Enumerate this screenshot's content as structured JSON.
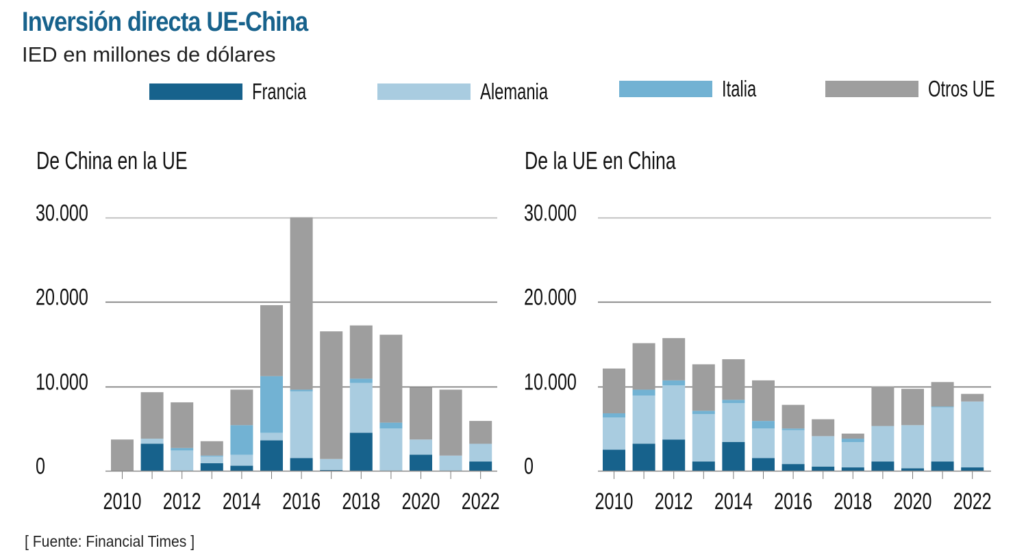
{
  "header": {
    "title": "Inversión directa UE-China",
    "subtitle": "IED en millones de dólares"
  },
  "legend": [
    {
      "name": "Francia",
      "color": "#17628c"
    },
    {
      "name": "Alemania",
      "color": "#a9cce0"
    },
    {
      "name": "Italia",
      "color": "#72b2d3"
    },
    {
      "name": "Otros UE",
      "color": "#9e9e9e"
    }
  ],
  "footnote": "[ Fuente: Financial Times ]",
  "chart_data": [
    {
      "type": "bar",
      "stacked": true,
      "title": "De China en la UE",
      "xlabel": "",
      "ylabel": "IED en millones de dólares",
      "ylim": [
        0,
        30000
      ],
      "yticks": [
        0,
        10000,
        20000,
        30000
      ],
      "ytick_labels": [
        "0",
        "10.000",
        "20.000",
        "30.000"
      ],
      "grid": true,
      "categories": [
        "2010",
        "2011",
        "2012",
        "2013",
        "2014",
        "2015",
        "2016",
        "2017",
        "2018",
        "2019",
        "2020",
        "2021",
        "2022"
      ],
      "xtick_labels": [
        "2010",
        "2012",
        "2014",
        "2016",
        "2018",
        "2020",
        "2022"
      ],
      "series": [
        {
          "name": "Francia",
          "values": [
            0,
            3200,
            0,
            900,
            600,
            3600,
            1500,
            100,
            4500,
            0,
            1900,
            0,
            1100
          ]
        },
        {
          "name": "Alemania",
          "values": [
            0,
            600,
            2400,
            800,
            1300,
            900,
            7900,
            1300,
            5900,
            5000,
            1800,
            1800,
            2100
          ]
        },
        {
          "name": "Italia",
          "values": [
            0,
            0,
            300,
            100,
            3500,
            6700,
            200,
            0,
            500,
            700,
            0,
            0,
            0
          ]
        },
        {
          "name": "Otros UE",
          "values": [
            3700,
            5500,
            5400,
            1700,
            4200,
            8400,
            20400,
            15100,
            6300,
            10400,
            6200,
            7800,
            2700
          ]
        }
      ]
    },
    {
      "type": "bar",
      "stacked": true,
      "title": "De la UE en China",
      "xlabel": "",
      "ylabel": "IED en millones de dólares",
      "ylim": [
        0,
        30000
      ],
      "yticks": [
        0,
        10000,
        20000,
        30000
      ],
      "ytick_labels": [
        "0",
        "10.000",
        "20.000",
        "30.000"
      ],
      "grid": true,
      "categories": [
        "2010",
        "2011",
        "2012",
        "2013",
        "2014",
        "2015",
        "2016",
        "2017",
        "2018",
        "2019",
        "2020",
        "2021",
        "2022"
      ],
      "xtick_labels": [
        "2010",
        "2012",
        "2014",
        "2016",
        "2018",
        "2020",
        "2022"
      ],
      "series": [
        {
          "name": "Francia",
          "values": [
            2500,
            3200,
            3700,
            1100,
            3400,
            1500,
            800,
            500,
            400,
            1100,
            300,
            1100,
            400
          ]
        },
        {
          "name": "Alemania",
          "values": [
            3800,
            5700,
            6400,
            5600,
            4600,
            3500,
            4000,
            3600,
            3000,
            4200,
            5100,
            6400,
            7800
          ]
        },
        {
          "name": "Italia",
          "values": [
            500,
            700,
            600,
            400,
            400,
            900,
            200,
            0,
            400,
            0,
            0,
            100,
            0
          ]
        },
        {
          "name": "Otros UE",
          "values": [
            5300,
            5500,
            5000,
            5500,
            4800,
            4800,
            2800,
            2000,
            600,
            4700,
            4300,
            2900,
            900
          ]
        }
      ]
    }
  ]
}
